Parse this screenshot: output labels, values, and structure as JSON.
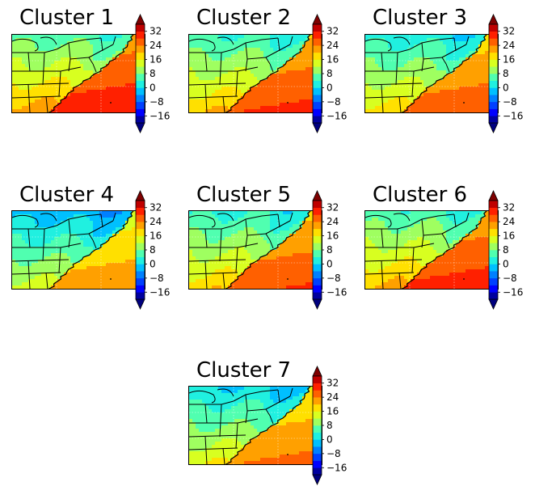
{
  "figure": {
    "colorbar": {
      "ticks": [
        "32",
        "24",
        "16",
        "8",
        "0",
        "−8",
        "−16"
      ],
      "tick_values": [
        32,
        24,
        16,
        8,
        0,
        -8,
        -16
      ],
      "range": [
        -20,
        36
      ],
      "extend": "both",
      "colormap": "jet",
      "levels": [
        {
          "from": -20,
          "to": -16,
          "color": "#00009f"
        },
        {
          "from": -16,
          "to": -12,
          "color": "#0000ff"
        },
        {
          "from": -12,
          "to": -8,
          "color": "#0040ff"
        },
        {
          "from": -8,
          "to": -4,
          "color": "#0080ff"
        },
        {
          "from": -4,
          "to": 0,
          "color": "#00c0ff"
        },
        {
          "from": 0,
          "to": 4,
          "color": "#20f0e0"
        },
        {
          "from": 4,
          "to": 8,
          "color": "#50ffb0"
        },
        {
          "from": 8,
          "to": 12,
          "color": "#9fff60"
        },
        {
          "from": 12,
          "to": 16,
          "color": "#d8ff20"
        },
        {
          "from": 16,
          "to": 20,
          "color": "#ffe000"
        },
        {
          "from": 20,
          "to": 24,
          "color": "#ffa000"
        },
        {
          "from": 24,
          "to": 28,
          "color": "#ff6000"
        },
        {
          "from": 28,
          "to": 32,
          "color": "#ff2000"
        },
        {
          "from": 32,
          "to": 36,
          "color": "#c00000"
        }
      ],
      "under_color": "#00007f",
      "over_color": "#7f0000"
    },
    "panels": [
      {
        "title": "Cluster 1",
        "offset": 4
      },
      {
        "title": "Cluster 2",
        "offset": 2
      },
      {
        "title": "Cluster 3",
        "offset": 0
      },
      {
        "title": "Cluster 4",
        "offset": -4
      },
      {
        "title": "Cluster 5",
        "offset": 1
      },
      {
        "title": "Cluster 6",
        "offset": 3
      },
      {
        "title": "Cluster 7",
        "offset": -2
      }
    ]
  }
}
